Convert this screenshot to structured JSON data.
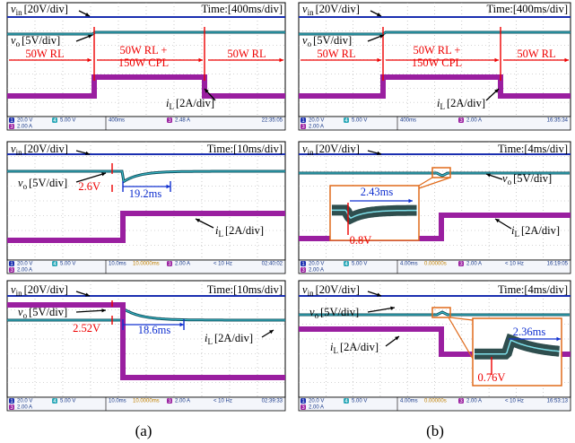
{
  "channel_badges": [
    "1",
    "3",
    "4"
  ],
  "captions": [
    "(a)",
    "(b)"
  ],
  "panels": [
    {
      "vin": {
        "symbol": "v",
        "sub": "in",
        "scale": "[20V/div]"
      },
      "vo": {
        "symbol": "v",
        "sub": "o",
        "scale": "[5V/div]"
      },
      "il": {
        "symbol": "i",
        "sub": "L",
        "scale": "[2A/div]"
      },
      "time": "Time:[400ms/div]",
      "annotations": [
        "50W RL",
        "50W RL +",
        "150W CPL",
        "50W RL"
      ],
      "status": {
        "ch1": "20.0 V",
        "ch3": "2.00 A",
        "ch4": "5.00 V",
        "timebase": "400ms",
        "trigger": "2.48 A",
        "clock": "22:35:05"
      }
    },
    {
      "vin": {
        "symbol": "v",
        "sub": "in",
        "scale": "[20V/div]"
      },
      "vo": {
        "symbol": "v",
        "sub": "o",
        "scale": "[5V/div]"
      },
      "il": {
        "symbol": "i",
        "sub": "L",
        "scale": "[2A/div]"
      },
      "time": "Time:[400ms/div]",
      "annotations": [
        "50W RL",
        "50W RL +",
        "150W CPL",
        "50W RL"
      ],
      "status": {
        "ch1": "20.0 V",
        "ch3": "2.00 A",
        "ch4": "5.00 V",
        "timebase": "400ms",
        "trigger": "2.00 A",
        "clock": "16:35:34"
      }
    },
    {
      "vin": {
        "symbol": "v",
        "sub": "in",
        "scale": "[20V/div]"
      },
      "vo": {
        "symbol": "v",
        "sub": "o",
        "scale": "[5V/div]"
      },
      "il": {
        "symbol": "i",
        "sub": "L",
        "scale": "[2A/div]"
      },
      "time": "Time:[10ms/div]",
      "annotations": [
        "2.6V",
        "19.2ms"
      ],
      "status": {
        "ch1": "20.0 V",
        "ch3": "2.00 A",
        "ch4": "5.00 V",
        "timebase": "10.0ms",
        "delay": "10.0000ms",
        "trigger": "2.00 A",
        "freq": "< 10 Hz",
        "clock": "02:40:02"
      }
    },
    {
      "vin": {
        "symbol": "v",
        "sub": "in",
        "scale": "[20V/div]"
      },
      "vo": {
        "symbol": "v",
        "sub": "o",
        "scale": "[5V/div]"
      },
      "il": {
        "symbol": "i",
        "sub": "L",
        "scale": "[2A/div]"
      },
      "time": "Time:[4ms/div]",
      "annotations": [
        "2.43ms",
        "0.8V"
      ],
      "status": {
        "ch1": "20.0 V",
        "ch3": "2.00 A",
        "ch4": "5.00 V",
        "timebase": "4.00ms",
        "delay": "0.00000s",
        "trigger": "2.00 A",
        "freq": "< 10 Hz",
        "clock": "16:19:05"
      }
    },
    {
      "vin": {
        "symbol": "v",
        "sub": "in",
        "scale": "[20V/div]"
      },
      "vo": {
        "symbol": "v",
        "sub": "o",
        "scale": "[5V/div]"
      },
      "il": {
        "symbol": "i",
        "sub": "L",
        "scale": "[2A/div]"
      },
      "time": "Time:[10ms/div]",
      "annotations": [
        "2.52V",
        "18.6ms"
      ],
      "status": {
        "ch1": "20.0 V",
        "ch3": "2.00 A",
        "ch4": "5.00 V",
        "timebase": "10.0ms",
        "delay": "10.0000ms",
        "trigger": "2.00 A",
        "freq": "< 10 Hz",
        "clock": "02:39:33"
      }
    },
    {
      "vin": {
        "symbol": "v",
        "sub": "in",
        "scale": "[20V/div]"
      },
      "vo": {
        "symbol": "v",
        "sub": "o",
        "scale": "[5V/div]"
      },
      "il": {
        "symbol": "i",
        "sub": "L",
        "scale": "[2A/div]"
      },
      "time": "Time:[4ms/div]",
      "annotations": [
        "2.36ms",
        "0.76V"
      ],
      "status": {
        "ch1": "20.0 V",
        "ch3": "2.00 A",
        "ch4": "5.00 V",
        "timebase": "4.00ms",
        "delay": "0.00000s",
        "trigger": "2.00 A",
        "freq": "< 10 Hz",
        "clock": "16:53:13"
      }
    }
  ]
}
